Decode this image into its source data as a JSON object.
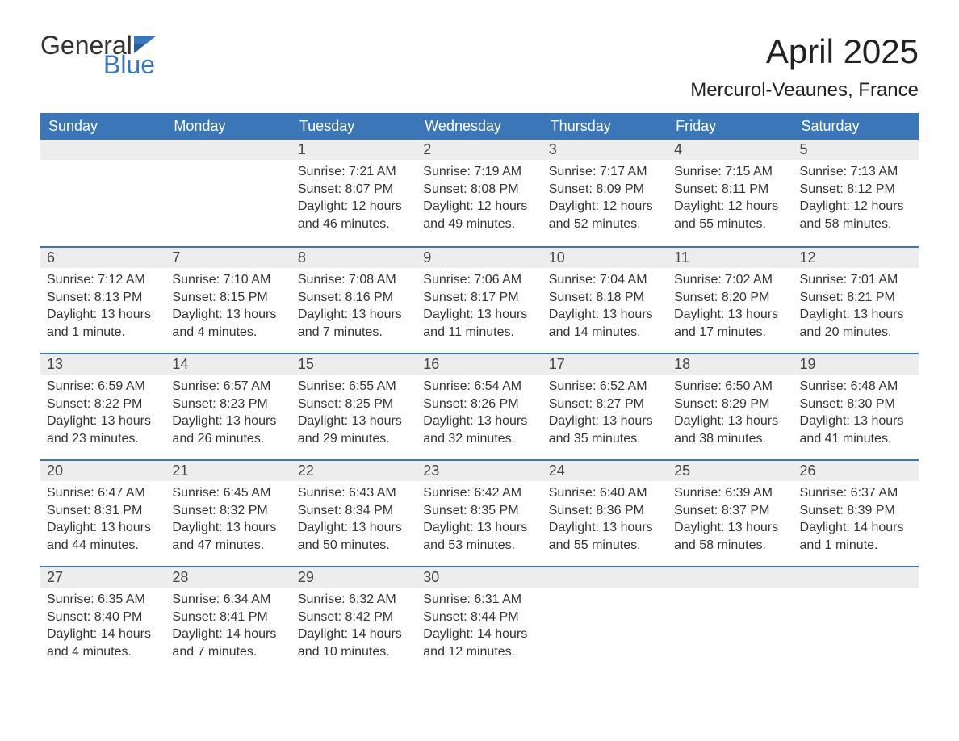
{
  "brand": {
    "general": "General",
    "blue": "Blue",
    "flag_color": "#3a76b8"
  },
  "header": {
    "title": "April 2025",
    "location": "Mercurol-Veaunes, France"
  },
  "style": {
    "header_bg": "#3a76b8",
    "daynum_bg": "#ededed",
    "week_border": "#3a76b8",
    "text_color": "#333333",
    "title_fontsize": 42,
    "location_fontsize": 24,
    "weekday_fontsize": 18,
    "body_fontsize": 16
  },
  "weekdays": [
    "Sunday",
    "Monday",
    "Tuesday",
    "Wednesday",
    "Thursday",
    "Friday",
    "Saturday"
  ],
  "weeks": [
    [
      null,
      null,
      {
        "n": "1",
        "sunrise": "7:21 AM",
        "sunset": "8:07 PM",
        "daylight": "12 hours and 46 minutes."
      },
      {
        "n": "2",
        "sunrise": "7:19 AM",
        "sunset": "8:08 PM",
        "daylight": "12 hours and 49 minutes."
      },
      {
        "n": "3",
        "sunrise": "7:17 AM",
        "sunset": "8:09 PM",
        "daylight": "12 hours and 52 minutes."
      },
      {
        "n": "4",
        "sunrise": "7:15 AM",
        "sunset": "8:11 PM",
        "daylight": "12 hours and 55 minutes."
      },
      {
        "n": "5",
        "sunrise": "7:13 AM",
        "sunset": "8:12 PM",
        "daylight": "12 hours and 58 minutes."
      }
    ],
    [
      {
        "n": "6",
        "sunrise": "7:12 AM",
        "sunset": "8:13 PM",
        "daylight": "13 hours and 1 minute."
      },
      {
        "n": "7",
        "sunrise": "7:10 AM",
        "sunset": "8:15 PM",
        "daylight": "13 hours and 4 minutes."
      },
      {
        "n": "8",
        "sunrise": "7:08 AM",
        "sunset": "8:16 PM",
        "daylight": "13 hours and 7 minutes."
      },
      {
        "n": "9",
        "sunrise": "7:06 AM",
        "sunset": "8:17 PM",
        "daylight": "13 hours and 11 minutes."
      },
      {
        "n": "10",
        "sunrise": "7:04 AM",
        "sunset": "8:18 PM",
        "daylight": "13 hours and 14 minutes."
      },
      {
        "n": "11",
        "sunrise": "7:02 AM",
        "sunset": "8:20 PM",
        "daylight": "13 hours and 17 minutes."
      },
      {
        "n": "12",
        "sunrise": "7:01 AM",
        "sunset": "8:21 PM",
        "daylight": "13 hours and 20 minutes."
      }
    ],
    [
      {
        "n": "13",
        "sunrise": "6:59 AM",
        "sunset": "8:22 PM",
        "daylight": "13 hours and 23 minutes."
      },
      {
        "n": "14",
        "sunrise": "6:57 AM",
        "sunset": "8:23 PM",
        "daylight": "13 hours and 26 minutes."
      },
      {
        "n": "15",
        "sunrise": "6:55 AM",
        "sunset": "8:25 PM",
        "daylight": "13 hours and 29 minutes."
      },
      {
        "n": "16",
        "sunrise": "6:54 AM",
        "sunset": "8:26 PM",
        "daylight": "13 hours and 32 minutes."
      },
      {
        "n": "17",
        "sunrise": "6:52 AM",
        "sunset": "8:27 PM",
        "daylight": "13 hours and 35 minutes."
      },
      {
        "n": "18",
        "sunrise": "6:50 AM",
        "sunset": "8:29 PM",
        "daylight": "13 hours and 38 minutes."
      },
      {
        "n": "19",
        "sunrise": "6:48 AM",
        "sunset": "8:30 PM",
        "daylight": "13 hours and 41 minutes."
      }
    ],
    [
      {
        "n": "20",
        "sunrise": "6:47 AM",
        "sunset": "8:31 PM",
        "daylight": "13 hours and 44 minutes."
      },
      {
        "n": "21",
        "sunrise": "6:45 AM",
        "sunset": "8:32 PM",
        "daylight": "13 hours and 47 minutes."
      },
      {
        "n": "22",
        "sunrise": "6:43 AM",
        "sunset": "8:34 PM",
        "daylight": "13 hours and 50 minutes."
      },
      {
        "n": "23",
        "sunrise": "6:42 AM",
        "sunset": "8:35 PM",
        "daylight": "13 hours and 53 minutes."
      },
      {
        "n": "24",
        "sunrise": "6:40 AM",
        "sunset": "8:36 PM",
        "daylight": "13 hours and 55 minutes."
      },
      {
        "n": "25",
        "sunrise": "6:39 AM",
        "sunset": "8:37 PM",
        "daylight": "13 hours and 58 minutes."
      },
      {
        "n": "26",
        "sunrise": "6:37 AM",
        "sunset": "8:39 PM",
        "daylight": "14 hours and 1 minute."
      }
    ],
    [
      {
        "n": "27",
        "sunrise": "6:35 AM",
        "sunset": "8:40 PM",
        "daylight": "14 hours and 4 minutes."
      },
      {
        "n": "28",
        "sunrise": "6:34 AM",
        "sunset": "8:41 PM",
        "daylight": "14 hours and 7 minutes."
      },
      {
        "n": "29",
        "sunrise": "6:32 AM",
        "sunset": "8:42 PM",
        "daylight": "14 hours and 10 minutes."
      },
      {
        "n": "30",
        "sunrise": "6:31 AM",
        "sunset": "8:44 PM",
        "daylight": "14 hours and 12 minutes."
      },
      null,
      null,
      null
    ]
  ],
  "labels": {
    "sunrise": "Sunrise: ",
    "sunset": "Sunset: ",
    "daylight": "Daylight: "
  }
}
